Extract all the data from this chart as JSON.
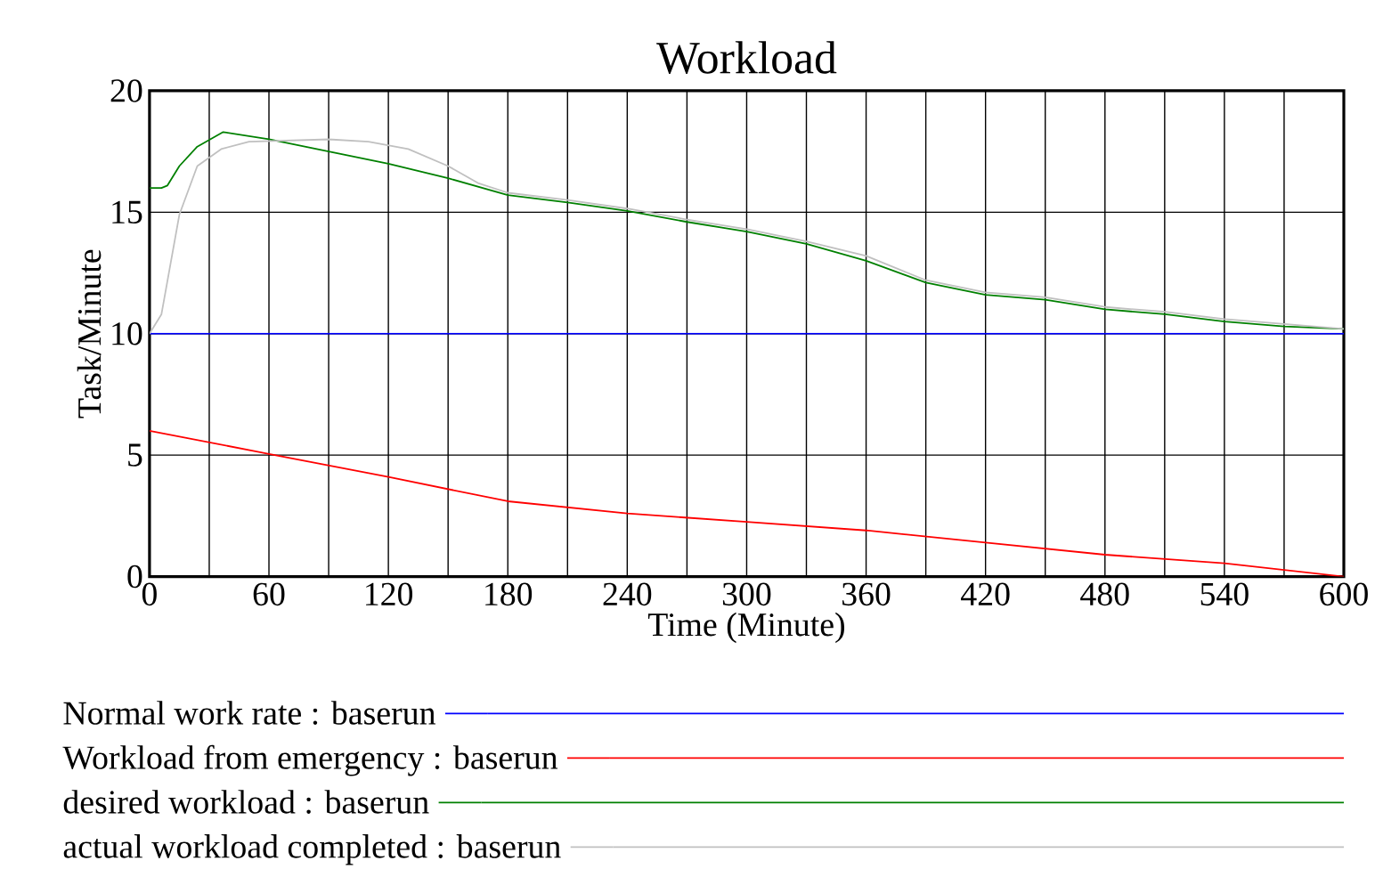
{
  "chart_data": {
    "type": "line",
    "title": "Workload",
    "xlabel": "Time (Minute)",
    "ylabel": "Task/Minute",
    "xlim": [
      0,
      600
    ],
    "ylim": [
      0,
      20
    ],
    "xticks": [
      0,
      {
        "value": 30,
        "label": null
      },
      60,
      {
        "value": 90,
        "label": null
      },
      120,
      {
        "value": 150,
        "label": null
      },
      180,
      {
        "value": 210,
        "label": null
      },
      240,
      {
        "value": 270,
        "label": null
      },
      300,
      {
        "value": 330,
        "label": null
      },
      360,
      {
        "value": 390,
        "label": null
      },
      420,
      {
        "value": 450,
        "label": null
      },
      480,
      {
        "value": 510,
        "label": null
      },
      540,
      {
        "value": 570,
        "label": null
      },
      600
    ],
    "yticks": [
      0,
      5,
      10,
      15,
      20
    ],
    "grid": true,
    "legend": "bottom",
    "series": [
      {
        "name": "Normal work rate : baserun",
        "color": "#0000ff",
        "x": [
          0,
          600
        ],
        "values": [
          10,
          10
        ]
      },
      {
        "name": "Workload from emergency : baserun",
        "color": "#ff0000",
        "x": [
          0,
          60,
          120,
          180,
          240,
          300,
          360,
          420,
          480,
          540,
          600
        ],
        "values": [
          6.0,
          5.05,
          4.1,
          3.1,
          2.6,
          2.25,
          1.9,
          1.4,
          0.9,
          0.55,
          0.0
        ]
      },
      {
        "name": "desired workload : baserun",
        "color": "#008000",
        "x": [
          0,
          6,
          9,
          15,
          24,
          37,
          60,
          90,
          120,
          150,
          180,
          210,
          240,
          270,
          300,
          330,
          360,
          390,
          420,
          450,
          480,
          510,
          540,
          570,
          600
        ],
        "values": [
          16.0,
          16.0,
          16.1,
          16.9,
          17.7,
          18.3,
          18.0,
          17.5,
          17.0,
          16.4,
          15.7,
          15.4,
          15.05,
          14.6,
          14.2,
          13.7,
          13.0,
          12.1,
          11.6,
          11.4,
          11.0,
          10.8,
          10.5,
          10.3,
          10.2
        ]
      },
      {
        "name": "actual workload completed : baserun",
        "color": "#c0c0c0",
        "x": [
          0,
          6,
          15,
          24,
          36,
          50,
          90,
          110,
          130,
          150,
          165,
          180,
          210,
          240,
          270,
          300,
          330,
          360,
          390,
          420,
          450,
          480,
          510,
          540,
          570,
          600
        ],
        "values": [
          10,
          10.8,
          14.9,
          16.9,
          17.6,
          17.9,
          18.0,
          17.9,
          17.6,
          16.9,
          16.2,
          15.8,
          15.5,
          15.15,
          14.7,
          14.3,
          13.8,
          13.2,
          12.2,
          11.7,
          11.5,
          11.1,
          10.9,
          10.6,
          10.4,
          10.2
        ]
      }
    ]
  }
}
